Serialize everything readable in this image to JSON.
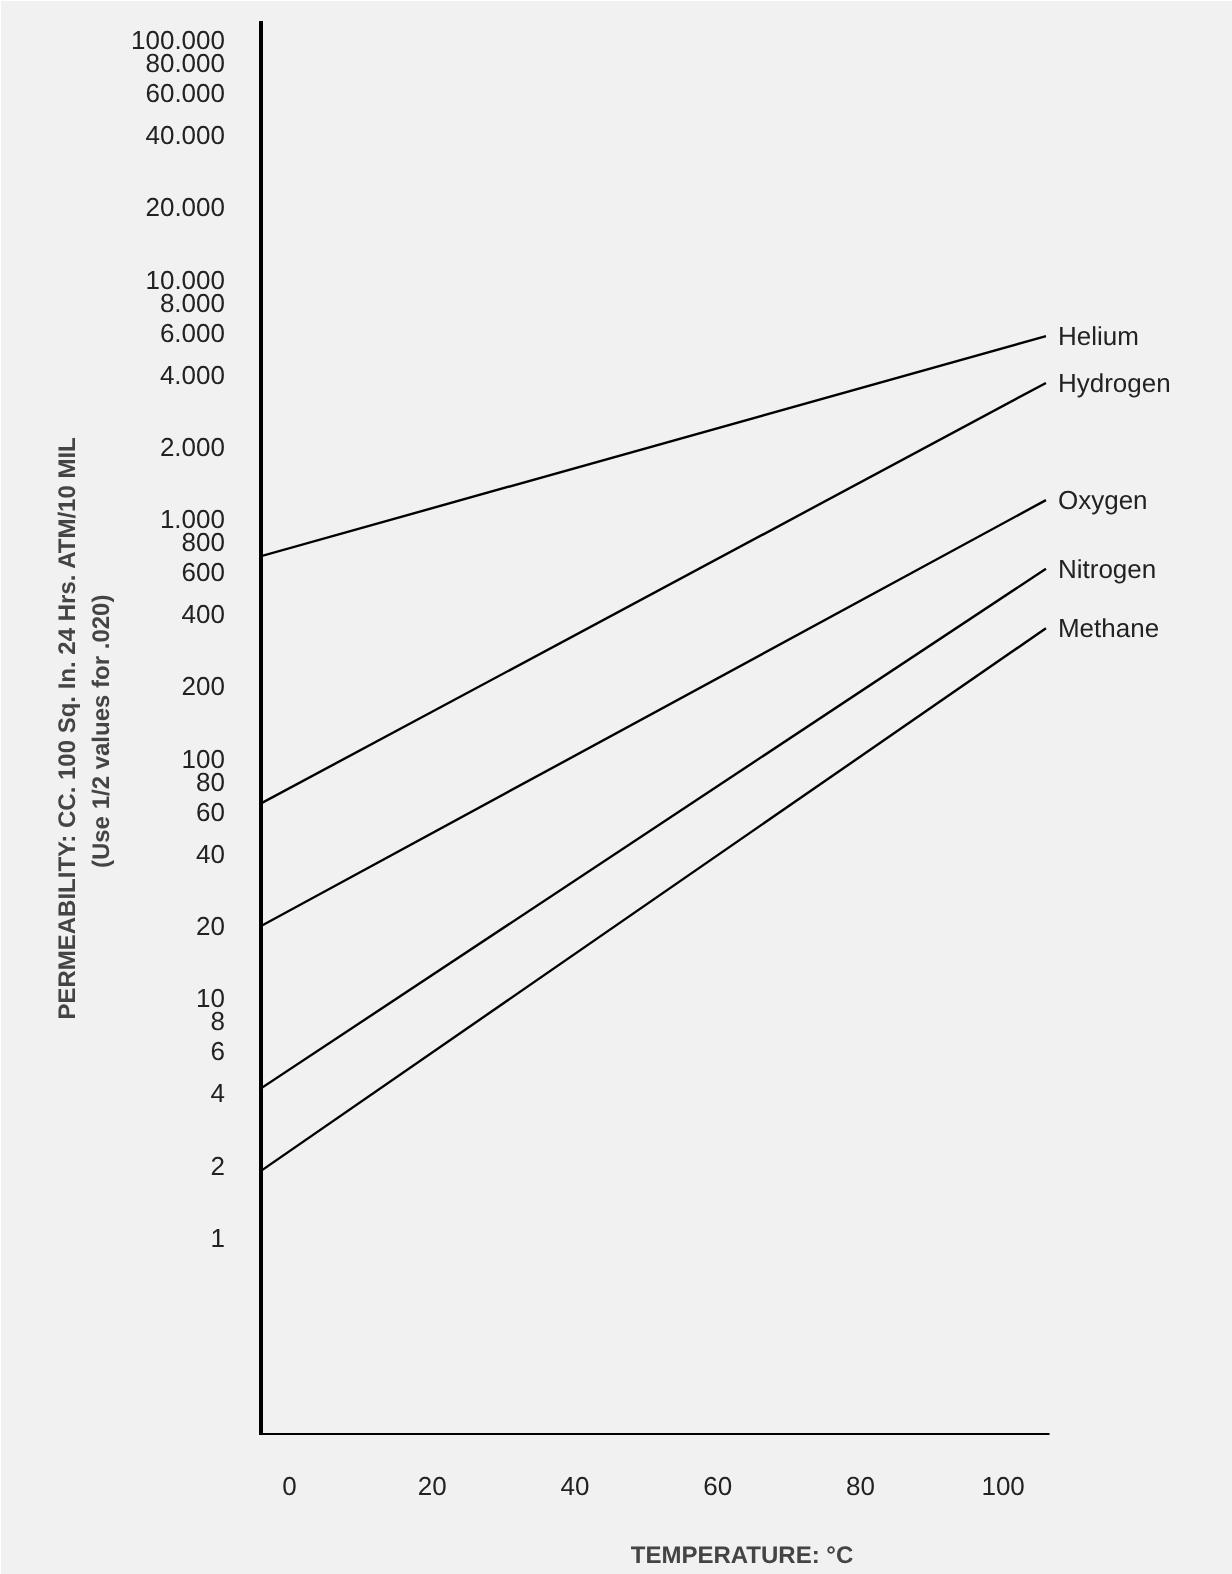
{
  "chart_data": {
    "type": "line",
    "xlabel": "TEMPERATURE: °C",
    "ylabel": "PERMEABILITY: CC. 100 Sq. In. 24 Hrs. ATM/10 MIL\n(Use 1/2 values  for .020)",
    "log": "y",
    "grid": false,
    "marker": "none",
    "line_style": "solid",
    "xlim": [
      -4,
      106.5
    ],
    "xticks": [
      0,
      20,
      40,
      60,
      80,
      100
    ],
    "ylim": [
      0.15,
      120000
    ],
    "yticks": [
      1,
      2,
      4,
      6,
      8,
      10,
      20,
      40,
      60,
      80,
      100,
      200,
      400,
      600,
      800,
      {
        "value": 1000,
        "label": "1.000"
      },
      {
        "value": 2000,
        "label": "2.000"
      },
      {
        "value": 4000,
        "label": "4.000"
      },
      {
        "value": 6000,
        "label": "6.000"
      },
      {
        "value": 8000,
        "label": "8.000"
      },
      {
        "value": 10000,
        "label": "10.000"
      },
      {
        "value": 20000,
        "label": "20.000"
      },
      {
        "value": 40000,
        "label": "40.000"
      },
      {
        "value": 60000,
        "label": "60.000"
      },
      {
        "value": 80000,
        "label": "80.000"
      },
      {
        "value": 100000,
        "label": "100.000"
      }
    ],
    "x": [
      -4,
      106
    ],
    "series": [
      {
        "name": "Helium",
        "color": "#000000",
        "values": [
          700,
          5800
        ]
      },
      {
        "name": "Hydrogen",
        "color": "#000000",
        "values": [
          65,
          3700
        ]
      },
      {
        "name": "Oxygen",
        "color": "#000000",
        "values": [
          20,
          1200
        ]
      },
      {
        "name": "Nitrogen",
        "color": "#000000",
        "values": [
          4.2,
          620
        ]
      },
      {
        "name": "Methane",
        "color": "#000000",
        "values": [
          1.9,
          350
        ]
      }
    ]
  }
}
